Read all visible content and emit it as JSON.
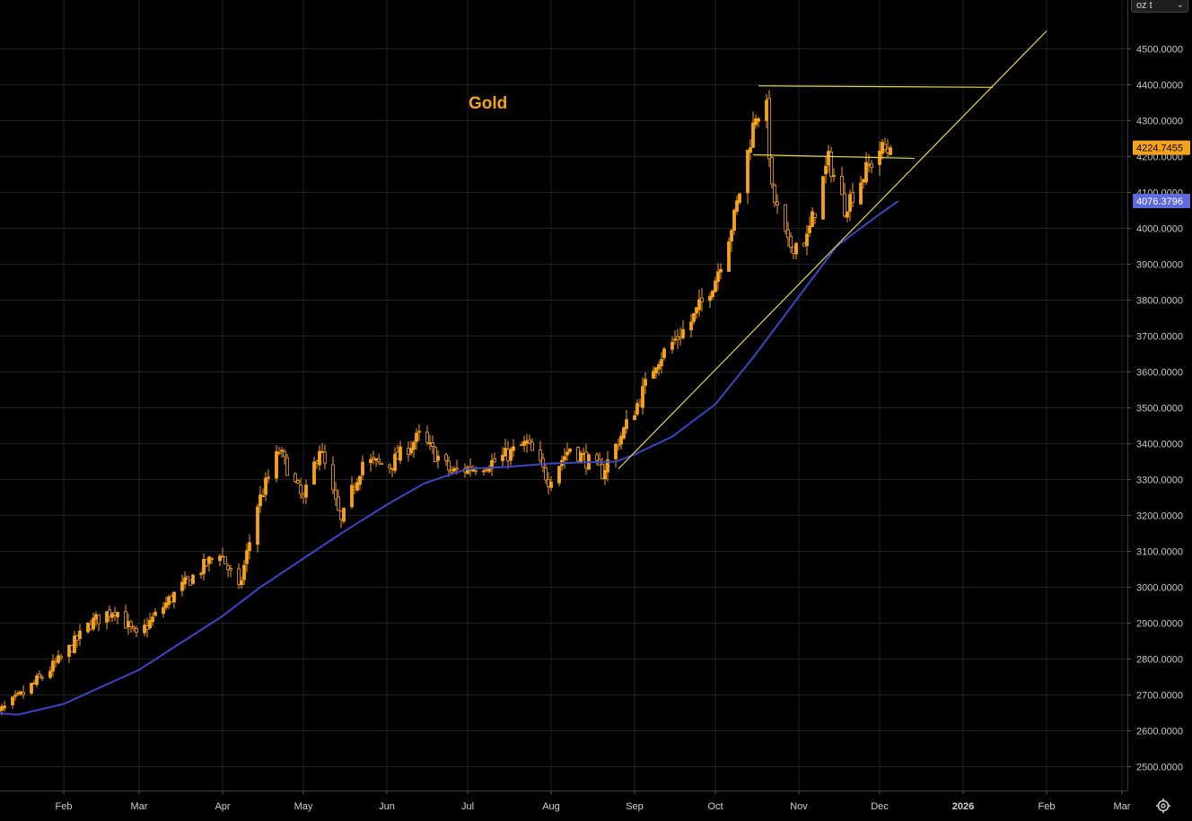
{
  "chart_data": {
    "type": "candlestick",
    "title": "Gold",
    "unit_selector": {
      "value": "oz t"
    },
    "y_axis": {
      "side": "right",
      "ylim": [
        2420,
        4580
      ],
      "ticks": [
        "2500.0000",
        "2600.0000",
        "2700.0000",
        "2800.0000",
        "2900.0000",
        "3000.0000",
        "3100.0000",
        "3200.0000",
        "3300.0000",
        "3400.0000",
        "3500.0000",
        "3600.0000",
        "3700.0000",
        "3800.0000",
        "3900.0000",
        "4000.0000",
        "4100.0000",
        "4200.0000",
        "4300.0000",
        "4400.0000",
        "4500.0000"
      ],
      "last_price_label": "4224.7455",
      "ma_label": "4076.3796"
    },
    "x_axis": {
      "labels": [
        "Feb",
        "Mar",
        "Apr",
        "May",
        "Jun",
        "Jul",
        "Aug",
        "Sep",
        "Oct",
        "Nov",
        "Dec",
        "2026",
        "Feb",
        "Mar"
      ],
      "dates": [
        "2025-02-01",
        "2025-03-01",
        "2025-04-01",
        "2025-05-01",
        "2025-06-01",
        "2025-07-01",
        "2025-08-01",
        "2025-09-01",
        "2025-10-01",
        "2025-11-01",
        "2025-12-01",
        "2026-01-01",
        "2026-02-01",
        "2026-03-01"
      ],
      "range": [
        "2025-01-06",
        "2026-03-31"
      ],
      "grid": true
    },
    "series": [
      {
        "name": "price",
        "kind": "candlestick",
        "anchors": [
          [
            "2025-01-06",
            2640
          ],
          [
            "2025-01-15",
            2690
          ],
          [
            "2025-01-31",
            2800
          ],
          [
            "2025-02-11",
            2900
          ],
          [
            "2025-02-20",
            2940
          ],
          [
            "2025-02-28",
            2860
          ],
          [
            "2025-03-14",
            2980
          ],
          [
            "2025-03-31",
            3100
          ],
          [
            "2025-04-07",
            2990
          ],
          [
            "2025-04-14",
            3230
          ],
          [
            "2025-04-22",
            3380
          ],
          [
            "2025-05-01",
            3240
          ],
          [
            "2025-05-07",
            3390
          ],
          [
            "2025-05-15",
            3180
          ],
          [
            "2025-05-23",
            3350
          ],
          [
            "2025-06-02",
            3340
          ],
          [
            "2025-06-13",
            3420
          ],
          [
            "2025-06-25",
            3320
          ],
          [
            "2025-07-11",
            3350
          ],
          [
            "2025-07-23",
            3400
          ],
          [
            "2025-07-31",
            3300
          ],
          [
            "2025-08-08",
            3390
          ],
          [
            "2025-08-20",
            3320
          ],
          [
            "2025-09-02",
            3510
          ],
          [
            "2025-09-09",
            3630
          ],
          [
            "2025-09-22",
            3740
          ],
          [
            "2025-10-01",
            3860
          ],
          [
            "2025-10-08",
            4030
          ],
          [
            "2025-10-16",
            4320
          ],
          [
            "2025-10-20",
            4330
          ],
          [
            "2025-10-22",
            4100
          ],
          [
            "2025-10-28",
            3950
          ],
          [
            "2025-11-04",
            3970
          ],
          [
            "2025-11-12",
            4190
          ],
          [
            "2025-11-18",
            4060
          ],
          [
            "2025-11-26",
            4160
          ],
          [
            "2025-12-01",
            4220
          ],
          [
            "2025-12-05",
            4215
          ]
        ],
        "last": 4224.7455
      },
      {
        "name": "moving average",
        "kind": "line",
        "color": "#3a45c8",
        "points": [
          [
            "2025-01-06",
            2650
          ],
          [
            "2025-01-15",
            2645
          ],
          [
            "2025-02-01",
            2675
          ],
          [
            "2025-03-01",
            2770
          ],
          [
            "2025-04-01",
            2920
          ],
          [
            "2025-04-15",
            3000
          ],
          [
            "2025-05-01",
            3080
          ],
          [
            "2025-05-15",
            3150
          ],
          [
            "2025-06-01",
            3230
          ],
          [
            "2025-06-15",
            3290
          ],
          [
            "2025-07-01",
            3330
          ],
          [
            "2025-07-15",
            3335
          ],
          [
            "2025-08-01",
            3345
          ],
          [
            "2025-08-15",
            3348
          ],
          [
            "2025-08-25",
            3350
          ],
          [
            "2025-09-01",
            3370
          ],
          [
            "2025-09-15",
            3420
          ],
          [
            "2025-10-01",
            3510
          ],
          [
            "2025-10-15",
            3640
          ],
          [
            "2025-11-01",
            3810
          ],
          [
            "2025-11-15",
            3950
          ],
          [
            "2025-12-01",
            4040
          ],
          [
            "2025-12-08",
            4076.3796
          ]
        ]
      }
    ],
    "annotations": [
      {
        "kind": "trendline",
        "name": "rising support",
        "from": [
          "2025-08-26",
          3330
        ],
        "to": [
          "2026-02-01",
          4550
        ],
        "color": "#e6d64a"
      },
      {
        "kind": "horizontal",
        "name": "resistance high",
        "from": [
          "2025-10-17",
          4397
        ],
        "to": [
          "2026-01-12",
          4393
        ],
        "color": "#e6d64a"
      },
      {
        "kind": "horizontal",
        "name": "mid level",
        "from": [
          "2025-10-15",
          4205
        ],
        "to": [
          "2025-12-14",
          4195
        ],
        "color": "#e6d64a"
      }
    ],
    "colors": {
      "background": "#000000",
      "grid": "#1f1f1f",
      "candle": "#f7a21b",
      "ma": "#3a45c8",
      "trend": "#e6d64a",
      "title": "#f7a21b",
      "last_label_bg": "#f7a21b",
      "ma_label_bg": "#5d6bdc"
    },
    "legend": false
  },
  "icons": {
    "settings": "settings-gear-icon",
    "dropdown": "chevron-down-icon"
  }
}
